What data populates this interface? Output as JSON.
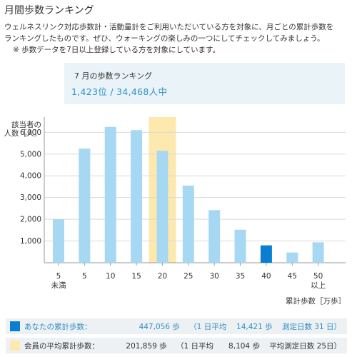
{
  "page": {
    "title": "月間歩数ランキング",
    "desc_line1": "ウェルネスリンク対応歩数計・活動量計をご利用いただいている方を対象に、月ごとの累計歩数を",
    "desc_line2": "ランキングしたものです。ぜひ、ウォーキングの楽しみの一つにしてチェックしてみましょう。",
    "desc_note": "※ 歩数データを7日以上登録している方を対象にしています。"
  },
  "ranking": {
    "title": "7 月の歩数ランキング",
    "value": "1,423位 / 34,468人中"
  },
  "chart_data": {
    "type": "bar",
    "ylabel_line1": "該当者の",
    "ylabel_line2": "人数［人］",
    "xlabel": "累計歩数［万歩］",
    "categories": [
      {
        "line1": "5",
        "line2": "未満"
      },
      {
        "line1": "5",
        "line2": ""
      },
      {
        "line1": "10",
        "line2": ""
      },
      {
        "line1": "15",
        "line2": ""
      },
      {
        "line1": "20",
        "line2": ""
      },
      {
        "line1": "25",
        "line2": ""
      },
      {
        "line1": "30",
        "line2": ""
      },
      {
        "line1": "35",
        "line2": ""
      },
      {
        "line1": "40",
        "line2": ""
      },
      {
        "line1": "45",
        "line2": ""
      },
      {
        "line1": "50",
        "line2": "以上"
      }
    ],
    "values": [
      2000,
      5250,
      6250,
      6100,
      5150,
      3550,
      2420,
      1520,
      800,
      470,
      940
    ],
    "yticks": [
      "1,000",
      "2,000",
      "3,000",
      "4,000",
      "5,000",
      "6,000"
    ],
    "ylim": [
      0,
      6700
    ],
    "self_index": 8,
    "average_index": 4,
    "colors": {
      "bar": "#a6d8f3",
      "self": "#0a7fd1",
      "average_band": "#fde9ad"
    }
  },
  "legend": {
    "self": {
      "label": "あなたの累計歩数：",
      "total": "447,056 歩",
      "daily": "（1 日平均　 14,421 歩",
      "days": "測定日数 31 日）"
    },
    "average": {
      "label": "会員の平均累計歩数：",
      "total": "201,859 歩",
      "daily": "（1 日平均　　8,104 歩",
      "days": "平均測定日数 25日）"
    }
  }
}
